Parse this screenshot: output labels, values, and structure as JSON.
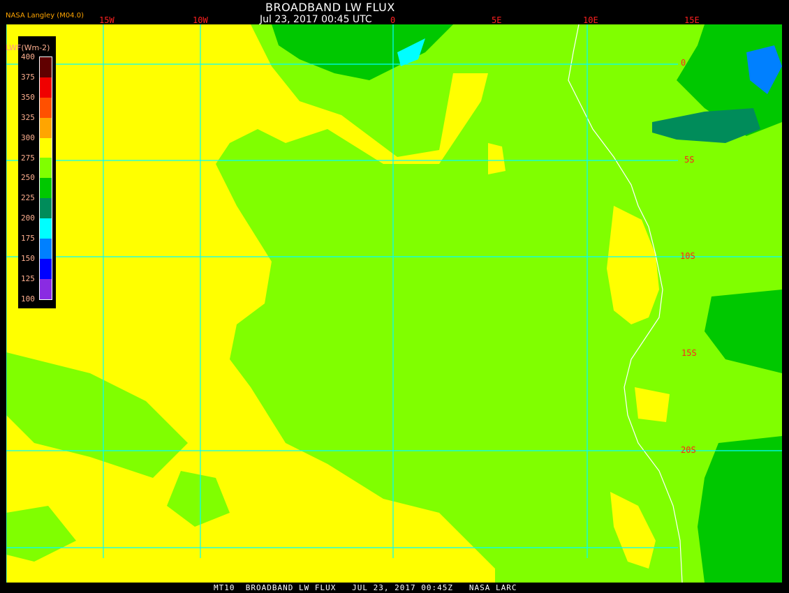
{
  "header": {
    "title": "BROADBAND LW FLUX",
    "subtitle": "Jul 23, 2017 00:45 UTC",
    "credit": "NASA Langley (M04.0)"
  },
  "longitude_labels": [
    "15W",
    "10W",
    "0",
    "5E",
    "10E",
    "15E"
  ],
  "latitude_labels": [
    "0",
    "5S",
    "10S",
    "15S",
    "20S"
  ],
  "legend": {
    "title_abbrev": "LWF",
    "title_units": "(Wm-2)",
    "ticks": [
      "400",
      "375",
      "350",
      "325",
      "300",
      "275",
      "250",
      "225",
      "200",
      "175",
      "150",
      "125",
      "100"
    ],
    "colors": [
      "#600000",
      "#f00000",
      "#ff5000",
      "#ffa500",
      "#ffff00",
      "#80ff00",
      "#00c800",
      "#008c5a",
      "#00ffff",
      "#0080ff",
      "#0000ff",
      "#8a2be2"
    ]
  },
  "colors": {
    "grid": "#00ffff",
    "coast": "#ffffff",
    "background": "#80ff00",
    "warm": "#ffff00",
    "cool": "#00c800",
    "cold": "#008c5a"
  },
  "footer": "MT10  BROADBAND LW FLUX   JUL 23, 2017 00:45Z   NASA LARC"
}
